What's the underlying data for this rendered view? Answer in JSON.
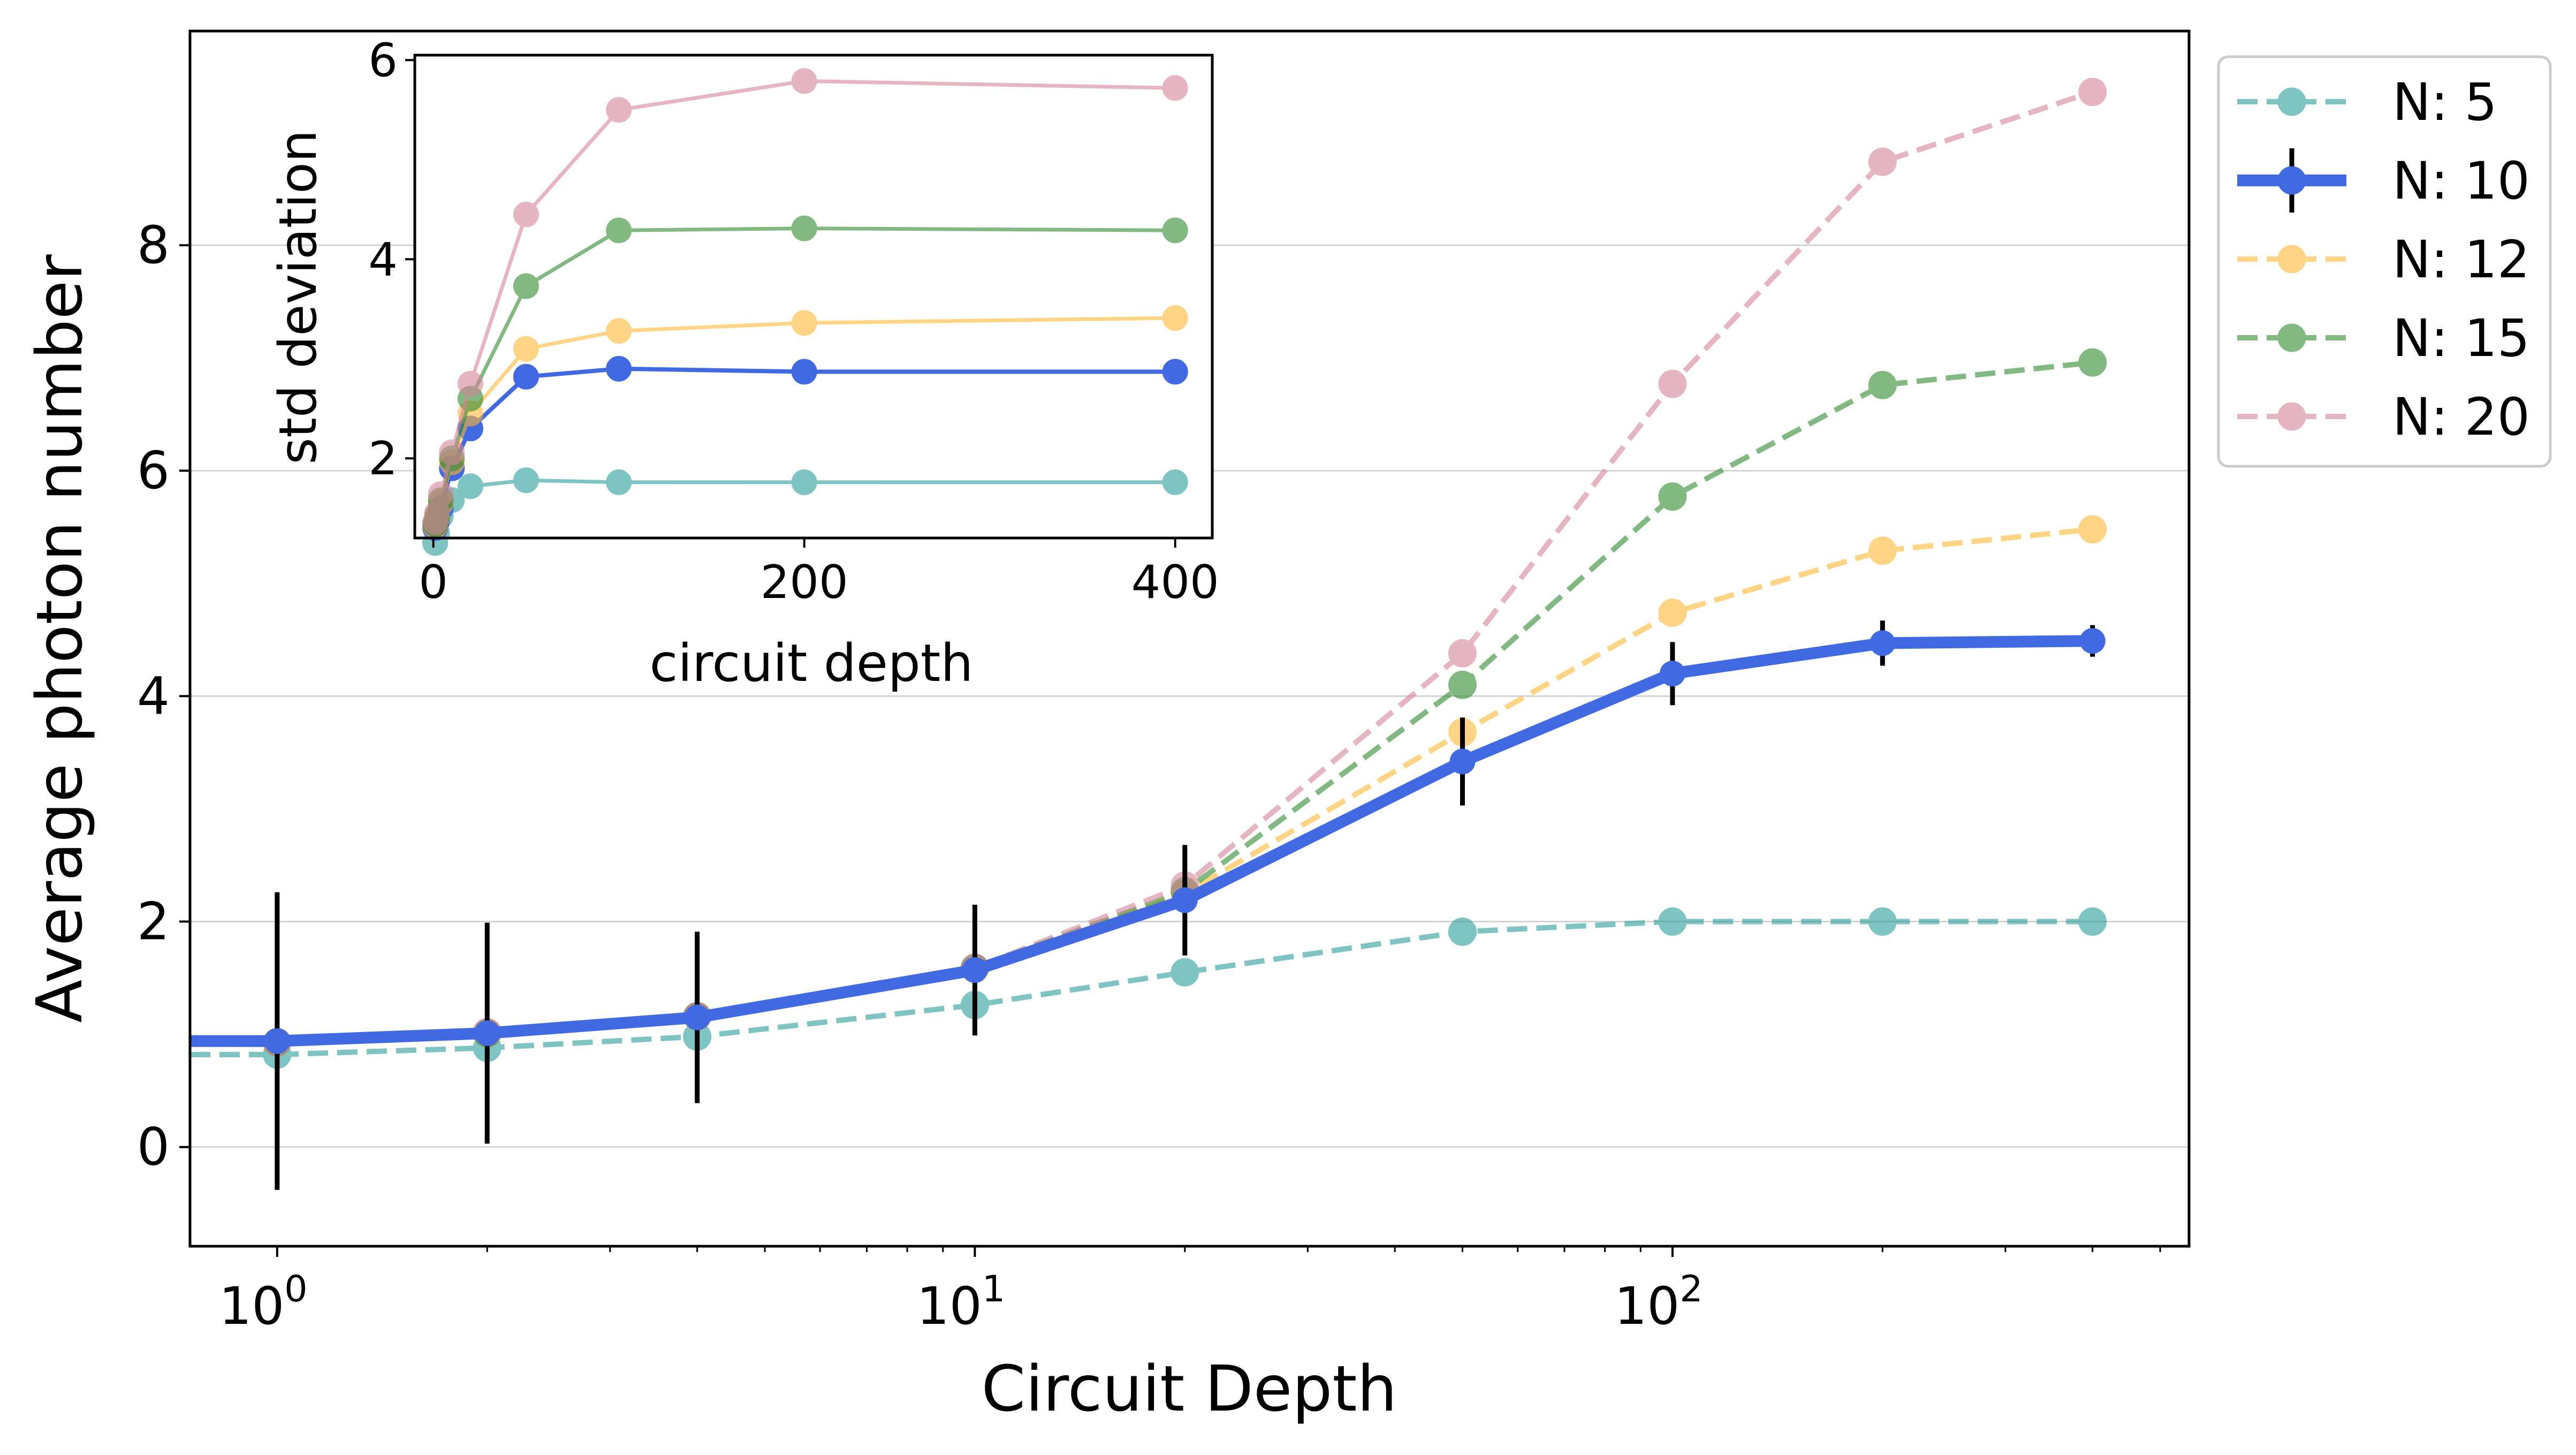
{
  "chart_data": [
    {
      "type": "line",
      "id": "main",
      "title": "",
      "xlabel": "Circuit Depth",
      "ylabel": "Average photon number",
      "xscale": "log",
      "xlim": [
        0.75,
        550
      ],
      "ylim": [
        -0.88,
        9.9
      ],
      "xticks": [
        {
          "value": 1,
          "base": "10",
          "exp": "0"
        },
        {
          "value": 10,
          "base": "10",
          "exp": "1"
        },
        {
          "value": 100,
          "base": "10",
          "exp": "2"
        }
      ],
      "yticks": [
        0,
        2,
        4,
        6,
        8
      ],
      "grid": "horizontal",
      "legend_position": "outside-right-top",
      "x": [
        1,
        2,
        4,
        10,
        20,
        50,
        100,
        200,
        400
      ],
      "series": [
        {
          "name": "N: 5",
          "color": "#2a9d9a",
          "style": "dashed",
          "values": [
            0.82,
            0.88,
            0.98,
            1.26,
            1.55,
            1.91,
            2.0,
            2.0,
            2.0
          ]
        },
        {
          "name": "N: 10",
          "color": "#4169e1",
          "style": "solid-thick",
          "values": [
            0.94,
            1.01,
            1.15,
            1.57,
            2.19,
            3.42,
            4.2,
            4.47,
            4.49
          ],
          "errors": [
            1.32,
            0.98,
            0.76,
            0.58,
            0.49,
            0.39,
            0.28,
            0.2,
            0.14
          ]
        },
        {
          "name": "N: 12",
          "color": "#ffb833",
          "style": "dashed",
          "values": [
            0.93,
            1.01,
            1.16,
            1.58,
            2.25,
            3.68,
            4.74,
            5.29,
            5.48
          ]
        },
        {
          "name": "N: 15",
          "color": "#2e8b2e",
          "style": "dashed",
          "values": [
            0.93,
            1.01,
            1.16,
            1.59,
            2.27,
            4.1,
            5.77,
            6.76,
            6.96
          ]
        },
        {
          "name": "N: 20",
          "color": "#d4859a",
          "style": "dashed",
          "values": [
            0.93,
            1.02,
            1.16,
            1.59,
            2.32,
            4.38,
            6.77,
            8.74,
            9.36
          ]
        }
      ]
    },
    {
      "type": "line",
      "id": "inset",
      "xlabel": "circuit depth",
      "ylabel": "std deviation",
      "xlim": [
        -10,
        420
      ],
      "ylim": [
        1.2,
        6.05
      ],
      "xticks": [
        0,
        200,
        400
      ],
      "yticks": [
        2,
        4,
        6
      ],
      "x": [
        1,
        2,
        4,
        10,
        20,
        50,
        100,
        200,
        400
      ],
      "series": [
        {
          "name": "N: 5",
          "color": "#2a9d9a",
          "values": [
            1.15,
            1.25,
            1.42,
            1.58,
            1.72,
            1.78,
            1.76,
            1.76,
            1.76
          ]
        },
        {
          "name": "N: 10",
          "color": "#4169e1",
          "values": [
            1.3,
            1.37,
            1.5,
            1.9,
            2.3,
            2.82,
            2.9,
            2.87,
            2.87
          ]
        },
        {
          "name": "N: 12",
          "color": "#ffb833",
          "values": [
            1.32,
            1.4,
            1.55,
            1.96,
            2.45,
            3.1,
            3.28,
            3.36,
            3.41
          ]
        },
        {
          "name": "N: 15",
          "color": "#2e8b2e",
          "values": [
            1.34,
            1.42,
            1.58,
            2.0,
            2.6,
            3.73,
            4.29,
            4.31,
            4.29
          ]
        },
        {
          "name": "N: 20",
          "color": "#d4859a",
          "values": [
            1.36,
            1.45,
            1.64,
            2.06,
            2.75,
            4.45,
            5.5,
            5.79,
            5.72
          ]
        }
      ]
    }
  ]
}
